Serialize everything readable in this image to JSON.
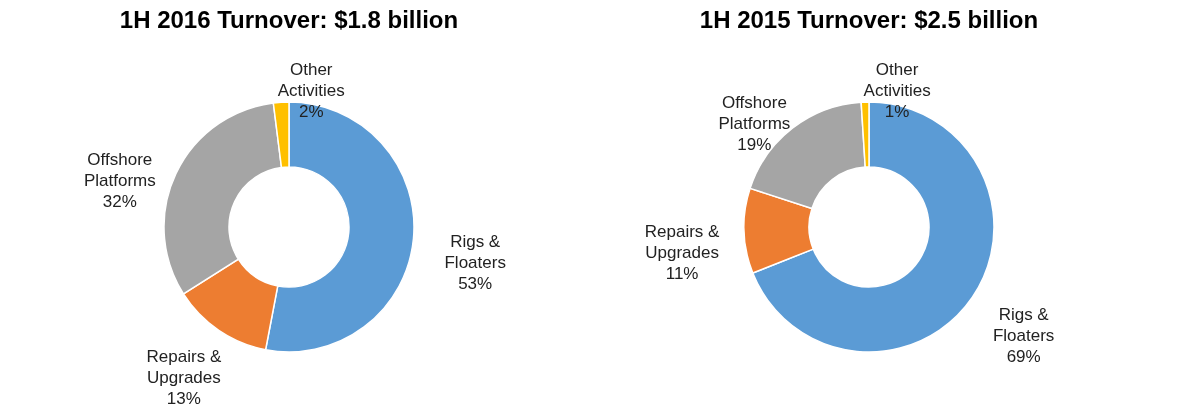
{
  "chart_data": [
    {
      "type": "donut",
      "title": "1H 2016 Turnover: $1.8 billion",
      "categories": [
        "Rigs & Floaters",
        "Repairs & Upgrades",
        "Offshore Platforms",
        "Other Activities"
      ],
      "values": [
        53,
        13,
        32,
        2
      ],
      "value_labels": [
        "53%",
        "13%",
        "32%",
        "2%"
      ],
      "colors": [
        "#5b9bd5",
        "#ed7d31",
        "#a5a5a5",
        "#ffc000"
      ],
      "legend": false
    },
    {
      "type": "donut",
      "title": "1H 2015 Turnover: $2.5 billion",
      "categories": [
        "Rigs & Floaters",
        "Repairs & Upgrades",
        "Offshore Platforms",
        "Other Activities"
      ],
      "values": [
        69,
        11,
        19,
        1
      ],
      "value_labels": [
        "69%",
        "11%",
        "19%",
        "1%"
      ],
      "colors": [
        "#5b9bd5",
        "#ed7d31",
        "#a5a5a5",
        "#ffc000"
      ],
      "legend": false
    }
  ]
}
